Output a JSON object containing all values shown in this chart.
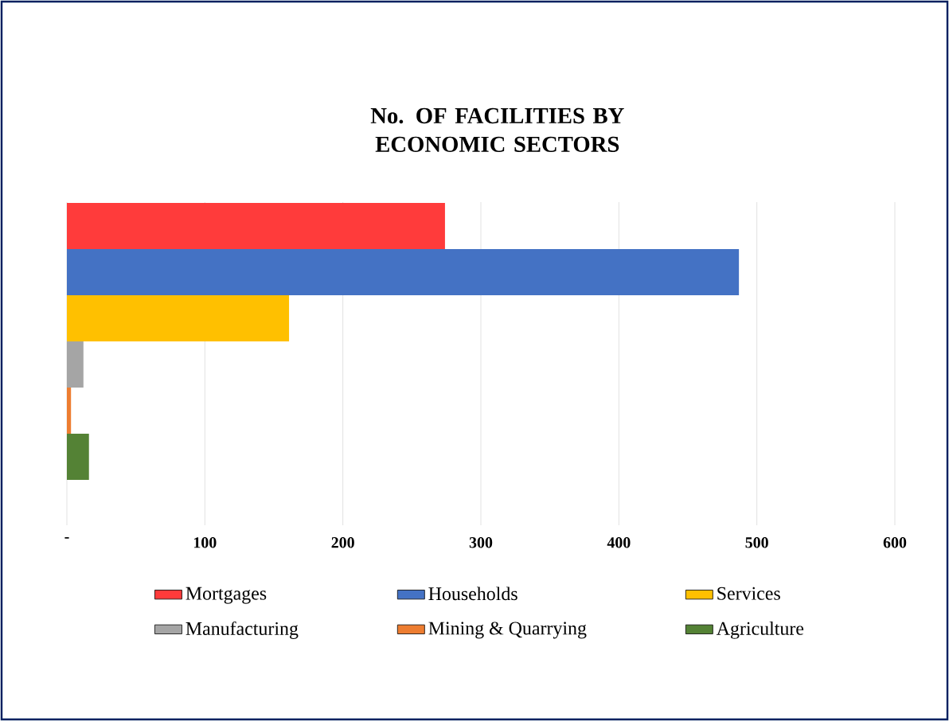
{
  "chart_data": {
    "type": "bar",
    "orientation": "horizontal",
    "title": "No. OF FACILITIES BY ECONOMIC SECTORS",
    "categories": [
      null
    ],
    "series": [
      {
        "name": "Mortgages",
        "color": "#ff3b3b",
        "values": [
          274
        ]
      },
      {
        "name": "Households",
        "color": "#4472c4",
        "values": [
          487
        ]
      },
      {
        "name": "Services",
        "color": "#ffc000",
        "values": [
          161
        ]
      },
      {
        "name": "Manufacturing",
        "color": "#a5a5a5",
        "values": [
          12
        ]
      },
      {
        "name": "Mining & Quarrying",
        "color": "#ed7d31",
        "values": [
          3
        ]
      },
      {
        "name": "Agriculture",
        "color": "#548235",
        "values": [
          16
        ]
      }
    ],
    "xlim": [
      0,
      600
    ],
    "xticks": [
      {
        "value": 0,
        "label": "-"
      },
      100,
      200,
      300,
      400,
      500,
      600
    ],
    "grid": "x",
    "legend": "bottom"
  }
}
